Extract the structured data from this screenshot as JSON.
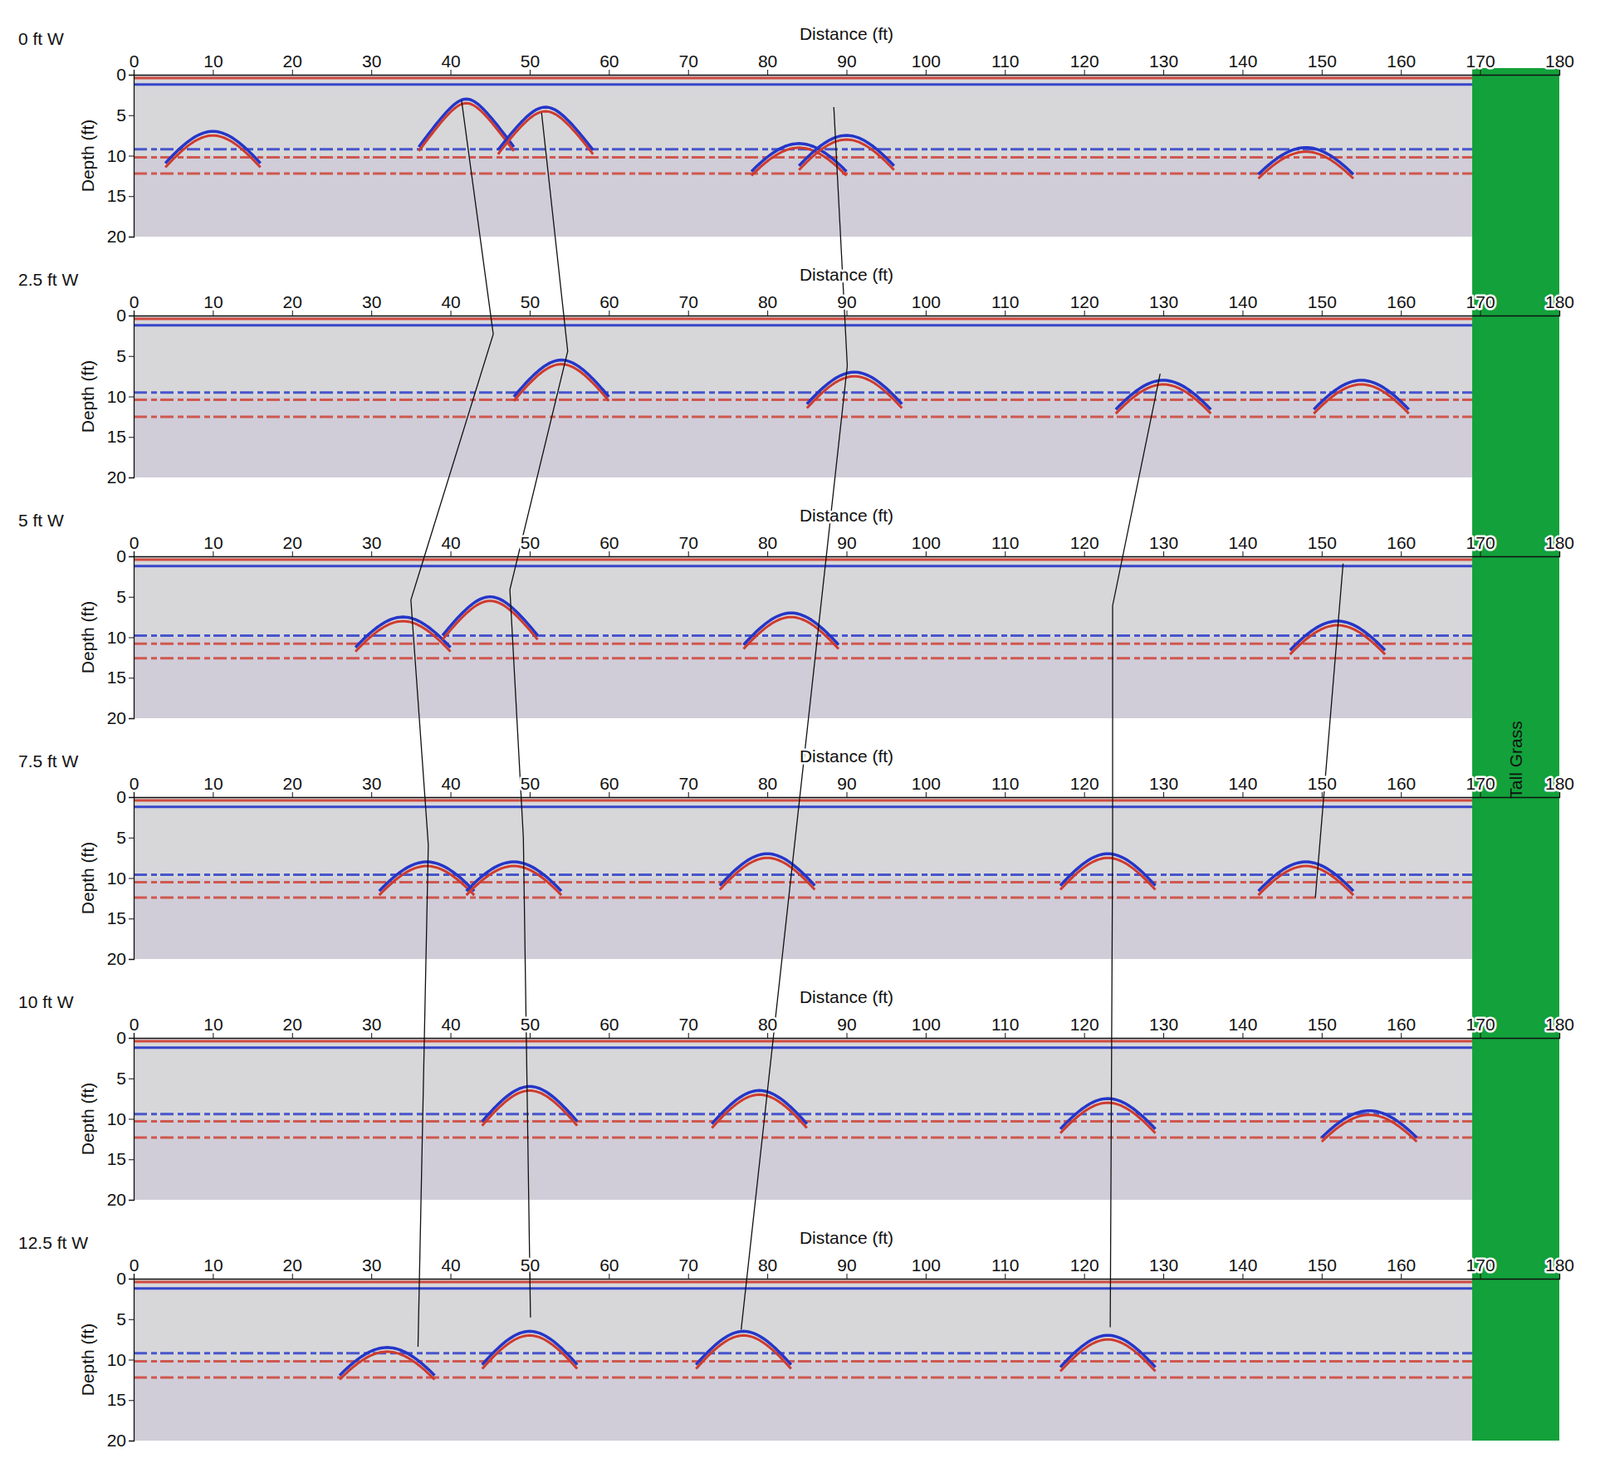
{
  "chart_data": [
    {
      "type": "radargram",
      "title": "0 ft W",
      "x_label": "Distance (ft)",
      "y_label": "Depth (ft)",
      "xlim": [
        0,
        180
      ],
      "ylim": [
        0,
        20
      ],
      "xticks": [
        0,
        10,
        20,
        30,
        40,
        50,
        60,
        70,
        80,
        90,
        100,
        110,
        120,
        130,
        140,
        150,
        160,
        170,
        180
      ],
      "yticks": [
        0,
        5,
        10,
        15,
        20
      ],
      "data_extent": [
        0,
        171
      ],
      "reflectors": [
        {
          "depth": 0.4,
          "color": "#cf3b2e"
        },
        {
          "depth": 1.2,
          "color": "#2536c8"
        },
        {
          "depth": 9.2,
          "color": "#2536c8"
        },
        {
          "depth": 10.2,
          "color": "#cf3b2e"
        },
        {
          "depth": 12.2,
          "color": "#cf3b2e"
        }
      ],
      "hyperbolas": [
        {
          "x": 10,
          "depth": 7
        },
        {
          "x": 42,
          "depth": 3
        },
        {
          "x": 52,
          "depth": 4
        },
        {
          "x": 84,
          "depth": 8.5
        },
        {
          "x": 90,
          "depth": 7.5
        },
        {
          "x": 148,
          "depth": 9
        }
      ]
    },
    {
      "type": "radargram",
      "title": "2.5 ft W",
      "x_label": "Distance (ft)",
      "y_label": "Depth (ft)",
      "xlim": [
        0,
        180
      ],
      "ylim": [
        0,
        20
      ],
      "xticks": [
        0,
        10,
        20,
        30,
        40,
        50,
        60,
        70,
        80,
        90,
        100,
        110,
        120,
        130,
        140,
        150,
        160,
        170,
        180
      ],
      "yticks": [
        0,
        5,
        10,
        15,
        20
      ],
      "data_extent": [
        0,
        170
      ],
      "reflectors": [
        {
          "depth": 0.4,
          "color": "#cf3b2e"
        },
        {
          "depth": 1.2,
          "color": "#2536c8"
        },
        {
          "depth": 9.5,
          "color": "#2536c8"
        },
        {
          "depth": 10.4,
          "color": "#cf3b2e"
        },
        {
          "depth": 12.5,
          "color": "#cf3b2e"
        }
      ],
      "hyperbolas": [
        {
          "x": 54,
          "depth": 5.5
        },
        {
          "x": 91,
          "depth": 7
        },
        {
          "x": 130,
          "depth": 8
        },
        {
          "x": 155,
          "depth": 8
        }
      ]
    },
    {
      "type": "radargram",
      "title": "5 ft W",
      "x_label": "Distance (ft)",
      "y_label": "Depth (ft)",
      "xlim": [
        0,
        180
      ],
      "ylim": [
        0,
        20
      ],
      "xticks": [
        0,
        10,
        20,
        30,
        40,
        50,
        60,
        70,
        80,
        90,
        100,
        110,
        120,
        130,
        140,
        150,
        160,
        170,
        180
      ],
      "yticks": [
        0,
        5,
        10,
        15,
        20
      ],
      "data_extent": [
        0,
        170
      ],
      "reflectors": [
        {
          "depth": 0.4,
          "color": "#cf3b2e"
        },
        {
          "depth": 1.2,
          "color": "#2536c8"
        },
        {
          "depth": 9.8,
          "color": "#2536c8"
        },
        {
          "depth": 10.8,
          "color": "#cf3b2e"
        },
        {
          "depth": 12.6,
          "color": "#cf3b2e"
        }
      ],
      "hyperbolas": [
        {
          "x": 34,
          "depth": 7.5
        },
        {
          "x": 45,
          "depth": 5
        },
        {
          "x": 83,
          "depth": 7
        },
        {
          "x": 152,
          "depth": 8
        }
      ]
    },
    {
      "type": "radargram",
      "title": "7.5 ft W",
      "x_label": "Distance (ft)",
      "y_label": "Depth (ft)",
      "xlim": [
        0,
        180
      ],
      "ylim": [
        0,
        20
      ],
      "xticks": [
        0,
        10,
        20,
        30,
        40,
        50,
        60,
        70,
        80,
        90,
        100,
        110,
        120,
        130,
        140,
        150,
        160,
        170,
        180
      ],
      "yticks": [
        0,
        5,
        10,
        15,
        20
      ],
      "data_extent": [
        0,
        170
      ],
      "reflectors": [
        {
          "depth": 0.4,
          "color": "#cf3b2e"
        },
        {
          "depth": 1.2,
          "color": "#2536c8"
        },
        {
          "depth": 9.6,
          "color": "#2536c8"
        },
        {
          "depth": 10.5,
          "color": "#cf3b2e"
        },
        {
          "depth": 12.4,
          "color": "#cf3b2e"
        }
      ],
      "hyperbolas": [
        {
          "x": 37,
          "depth": 8
        },
        {
          "x": 48,
          "depth": 8
        },
        {
          "x": 80,
          "depth": 7
        },
        {
          "x": 123,
          "depth": 7
        },
        {
          "x": 148,
          "depth": 8
        }
      ]
    },
    {
      "type": "radargram",
      "title": "10 ft W",
      "x_label": "Distance (ft)",
      "y_label": "Depth (ft)",
      "xlim": [
        0,
        180
      ],
      "ylim": [
        0,
        20
      ],
      "xticks": [
        0,
        10,
        20,
        30,
        40,
        50,
        60,
        70,
        80,
        90,
        100,
        110,
        120,
        130,
        140,
        150,
        160,
        170,
        180
      ],
      "yticks": [
        0,
        5,
        10,
        15,
        20
      ],
      "data_extent": [
        0,
        170
      ],
      "reflectors": [
        {
          "depth": 0.4,
          "color": "#cf3b2e"
        },
        {
          "depth": 1.2,
          "color": "#2536c8"
        },
        {
          "depth": 9.4,
          "color": "#2536c8"
        },
        {
          "depth": 10.3,
          "color": "#cf3b2e"
        },
        {
          "depth": 12.3,
          "color": "#cf3b2e"
        }
      ],
      "hyperbolas": [
        {
          "x": 50,
          "depth": 6
        },
        {
          "x": 79,
          "depth": 6.5
        },
        {
          "x": 123,
          "depth": 7.5
        },
        {
          "x": 156,
          "depth": 9
        }
      ]
    },
    {
      "type": "radargram",
      "title": "12.5 ft W",
      "x_label": "Distance (ft)",
      "y_label": "Depth (ft)",
      "xlim": [
        0,
        180
      ],
      "ylim": [
        0,
        20
      ],
      "xticks": [
        0,
        10,
        20,
        30,
        40,
        50,
        60,
        70,
        80,
        90,
        100,
        110,
        120,
        130,
        140,
        150,
        160,
        170,
        180
      ],
      "yticks": [
        0,
        5,
        10,
        15,
        20
      ],
      "data_extent": [
        0,
        170
      ],
      "reflectors": [
        {
          "depth": 0.4,
          "color": "#cf3b2e"
        },
        {
          "depth": 1.2,
          "color": "#2536c8"
        },
        {
          "depth": 9.2,
          "color": "#2536c8"
        },
        {
          "depth": 10.2,
          "color": "#cf3b2e"
        },
        {
          "depth": 12.2,
          "color": "#cf3b2e"
        }
      ],
      "hyperbolas": [
        {
          "x": 32,
          "depth": 8.5
        },
        {
          "x": 50,
          "depth": 6.5
        },
        {
          "x": 77,
          "depth": 6.5
        },
        {
          "x": 123,
          "depth": 7
        }
      ]
    }
  ],
  "interpretation_lines": [
    {
      "points": [
        {
          "panel": 0,
          "x": 41.4,
          "depth": 3.2
        },
        {
          "panel": 1,
          "x": 45.4,
          "depth": 2.3
        },
        {
          "panel": 2,
          "x": 35,
          "depth": 5.4
        },
        {
          "panel": 3,
          "x": 37.2,
          "depth": 5.9
        },
        {
          "panel": 5,
          "x": 35.9,
          "depth": 8.4
        }
      ]
    },
    {
      "points": [
        {
          "panel": 0,
          "x": 51.5,
          "depth": 4.7
        },
        {
          "panel": 1,
          "x": 54.8,
          "depth": 4.4
        },
        {
          "panel": 2,
          "x": 47.5,
          "depth": 4.1
        },
        {
          "panel": 3,
          "x": 49.2,
          "depth": 5
        },
        {
          "panel": 5,
          "x": 50.1,
          "depth": 4.8
        }
      ]
    },
    {
      "points": [
        {
          "panel": 0,
          "x": 88.4,
          "depth": 4
        },
        {
          "panel": 1,
          "x": 90.1,
          "depth": 6.2
        },
        {
          "panel": 5,
          "x": 76.7,
          "depth": 6.3
        }
      ]
    },
    {
      "points": [
        {
          "panel": 1,
          "x": 129.6,
          "depth": 7.2
        },
        {
          "panel": 2,
          "x": 123.6,
          "depth": 6.1
        },
        {
          "panel": 3,
          "x": 123.6,
          "depth": 5.9
        },
        {
          "panel": 5,
          "x": 123.3,
          "depth": 6
        }
      ]
    },
    {
      "points": [
        {
          "panel": 2,
          "x": 152.7,
          "depth": 0.9
        },
        {
          "panel": 3,
          "x": 149.2,
          "depth": 12.4
        }
      ]
    }
  ],
  "tall_grass": {
    "label": "Tall Grass",
    "x": [
      169,
      180
    ],
    "color": "#13a13b"
  }
}
